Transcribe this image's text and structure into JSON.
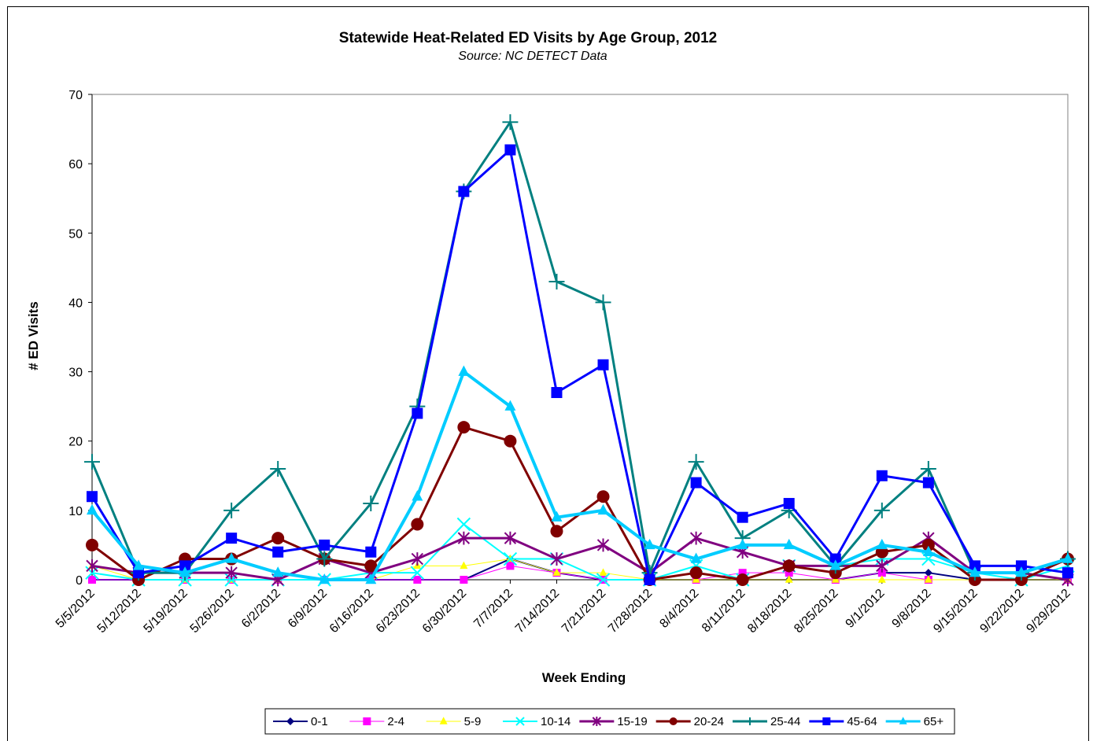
{
  "chart_data": {
    "type": "line",
    "title": "Statewide Heat-Related ED Visits by Age Group, 2012",
    "subtitle": "Source: NC DETECT Data",
    "xlabel": "Week Ending",
    "ylabel": "# ED Visits",
    "ylim": [
      0,
      70
    ],
    "yticks": [
      0,
      10,
      20,
      30,
      40,
      50,
      60,
      70
    ],
    "grid": false,
    "legend_position": "bottom",
    "categories": [
      "5/5/2012",
      "5/12/2012",
      "5/19/2012",
      "5/26/2012",
      "6/2/2012",
      "6/9/2012",
      "6/16/2012",
      "6/23/2012",
      "6/30/2012",
      "7/7/2012",
      "7/14/2012",
      "7/21/2012",
      "7/28/2012",
      "8/4/2012",
      "8/11/2012",
      "8/18/2012",
      "8/25/2012",
      "9/1/2012",
      "9/8/2012",
      "9/15/2012",
      "9/22/2012",
      "9/29/2012"
    ],
    "series": [
      {
        "name": "0-1",
        "color": "#000080",
        "marker": "diamond",
        "width": 2,
        "values": [
          0,
          0,
          0,
          0,
          0,
          0,
          0,
          0,
          0,
          3,
          1,
          0,
          0,
          0,
          0,
          0,
          0,
          1,
          1,
          0,
          0,
          0
        ]
      },
      {
        "name": "2-4",
        "color": "#ff00ff",
        "marker": "square",
        "width": 1,
        "values": [
          0,
          0,
          0,
          0,
          0,
          0,
          0,
          0,
          0,
          2,
          1,
          0,
          0,
          0,
          1,
          1,
          0,
          1,
          0,
          0,
          0,
          0
        ]
      },
      {
        "name": "5-9",
        "color": "#ffff00",
        "marker": "triangle",
        "width": 1,
        "values": [
          2,
          0,
          0,
          0,
          0,
          0,
          0,
          2,
          2,
          3,
          1,
          1,
          0,
          0,
          0,
          0,
          0,
          0,
          0,
          0,
          0,
          0
        ]
      },
      {
        "name": "10-14",
        "color": "#00ffff",
        "marker": "x",
        "width": 2,
        "values": [
          1,
          0,
          0,
          0,
          0,
          0,
          1,
          1,
          8,
          3,
          3,
          0,
          0,
          2,
          0,
          2,
          2,
          3,
          3,
          1,
          0,
          2
        ]
      },
      {
        "name": "15-19",
        "color": "#800080",
        "marker": "star",
        "width": 3,
        "values": [
          2,
          1,
          1,
          1,
          0,
          3,
          1,
          3,
          6,
          6,
          3,
          5,
          1,
          6,
          4,
          2,
          2,
          2,
          6,
          1,
          1,
          0
        ]
      },
      {
        "name": "20-24",
        "color": "#800000",
        "marker": "circle",
        "width": 3,
        "values": [
          5,
          0,
          3,
          3,
          6,
          3,
          2,
          8,
          22,
          20,
          7,
          12,
          0,
          1,
          0,
          2,
          1,
          4,
          5,
          0,
          0,
          3
        ]
      },
      {
        "name": "25-44",
        "color": "#008080",
        "marker": "plus",
        "width": 3,
        "values": [
          17,
          1,
          1,
          10,
          16,
          3,
          11,
          25,
          56,
          66,
          43,
          40,
          1,
          17,
          6,
          10,
          2,
          10,
          16,
          1,
          1,
          3
        ]
      },
      {
        "name": "45-64",
        "color": "#0000ff",
        "marker": "square",
        "width": 3,
        "values": [
          12,
          1,
          2,
          6,
          4,
          5,
          4,
          24,
          56,
          62,
          27,
          31,
          0,
          14,
          9,
          11,
          3,
          15,
          14,
          2,
          2,
          1
        ]
      },
      {
        "name": "65+",
        "color": "#00ccff",
        "marker": "triangle",
        "width": 4,
        "values": [
          10,
          2,
          1,
          3,
          1,
          0,
          0,
          12,
          30,
          25,
          9,
          10,
          5,
          3,
          5,
          5,
          2,
          5,
          4,
          1,
          1,
          3
        ]
      }
    ]
  }
}
